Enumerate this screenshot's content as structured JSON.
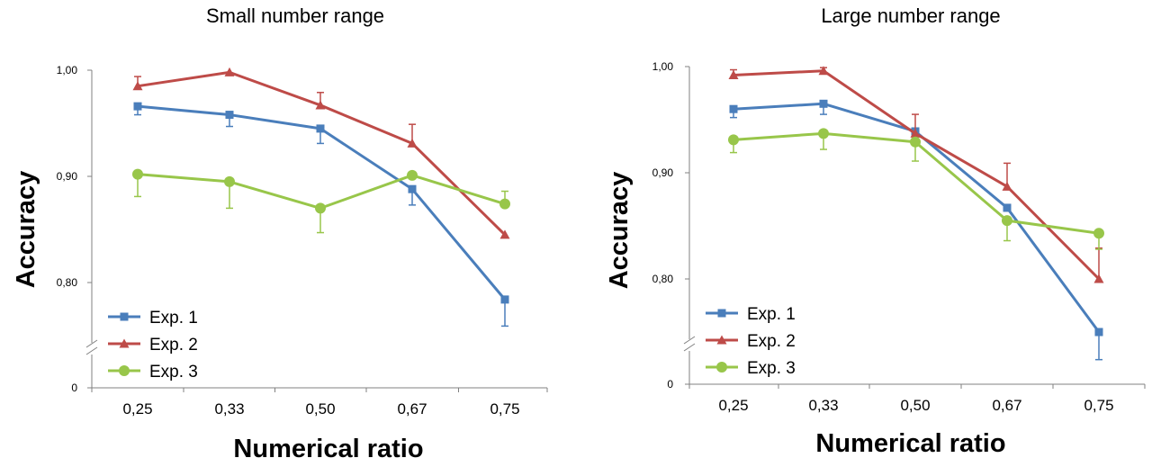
{
  "chart_data": [
    {
      "type": "line",
      "title": "Small number range",
      "xlabel": "Numerical ratio",
      "ylabel": "Accuracy",
      "categories": [
        "0,25",
        "0,33",
        "0,50",
        "0,67",
        "0,75"
      ],
      "yticks": [
        "0",
        "0,80",
        "0,90",
        "1,00"
      ],
      "ylim": [
        0.75,
        1.0
      ],
      "axis_break": true,
      "legend_position": "lower-left",
      "series": [
        {
          "name": "Exp. 1",
          "color": "#4a7ebb",
          "marker": "square",
          "values": [
            0.966,
            0.958,
            0.945,
            0.888,
            0.784
          ],
          "errors": [
            0.008,
            0.011,
            0.014,
            0.015,
            0.025
          ],
          "error_dir": [
            -1,
            -1,
            -1,
            -1,
            -1
          ]
        },
        {
          "name": "Exp. 2",
          "color": "#be4b48",
          "marker": "triangle",
          "values": [
            0.985,
            0.998,
            0.967,
            0.931,
            0.845
          ],
          "errors": [
            0.009,
            0.0,
            0.012,
            0.018,
            0.0
          ],
          "error_dir": [
            1,
            1,
            1,
            1,
            1
          ]
        },
        {
          "name": "Exp. 3",
          "color": "#98c64a",
          "marker": "circle",
          "values": [
            0.902,
            0.895,
            0.87,
            0.901,
            0.874
          ],
          "errors": [
            0.021,
            0.025,
            0.023,
            0.0,
            0.012
          ],
          "error_dir": [
            -1,
            -1,
            -1,
            -1,
            1
          ]
        }
      ]
    },
    {
      "type": "line",
      "title": "Large number range",
      "xlabel": "Numerical ratio",
      "ylabel": "Accuracy",
      "categories": [
        "0,25",
        "0,33",
        "0,50",
        "0,67",
        "0,75"
      ],
      "yticks": [
        "0",
        "0,80",
        "0,90",
        "1,00"
      ],
      "ylim": [
        0.75,
        1.0
      ],
      "axis_break": true,
      "legend_position": "lower-left",
      "series": [
        {
          "name": "Exp. 1",
          "color": "#4a7ebb",
          "marker": "square",
          "values": [
            0.96,
            0.965,
            0.939,
            0.867,
            0.75
          ],
          "errors": [
            0.008,
            0.01,
            0.0,
            0.0,
            0.026
          ],
          "error_dir": [
            -1,
            -1,
            -1,
            -1,
            -1
          ]
        },
        {
          "name": "Exp. 2",
          "color": "#be4b48",
          "marker": "triangle",
          "values": [
            0.992,
            0.996,
            0.937,
            0.887,
            0.8
          ],
          "errors": [
            0.005,
            0.003,
            0.018,
            0.022,
            0.029
          ],
          "error_dir": [
            1,
            1,
            1,
            1,
            1
          ]
        },
        {
          "name": "Exp. 3",
          "color": "#98c64a",
          "marker": "circle",
          "values": [
            0.931,
            0.937,
            0.929,
            0.855,
            0.843
          ],
          "errors": [
            0.012,
            0.015,
            0.018,
            0.019,
            0.015
          ],
          "error_dir": [
            -1,
            -1,
            -1,
            -1,
            -1
          ]
        }
      ]
    }
  ]
}
